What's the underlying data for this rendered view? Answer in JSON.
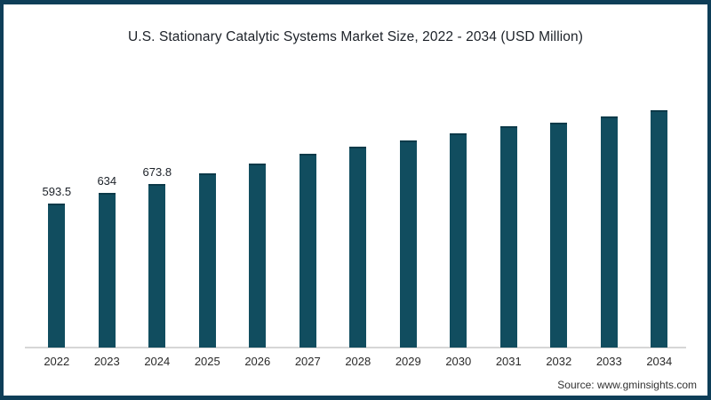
{
  "frame": {
    "border_color": "#0e3e58",
    "background": "#ffffff"
  },
  "chart_data": {
    "type": "bar",
    "title": "U.S. Stationary Catalytic Systems Market Size, 2022 - 2034 (USD Million)",
    "categories": [
      "2022",
      "2023",
      "2024",
      "2025",
      "2026",
      "2027",
      "2028",
      "2029",
      "2030",
      "2031",
      "2032",
      "2033",
      "2034"
    ],
    "values": [
      593.5,
      634,
      673.8,
      715,
      758,
      795,
      825,
      852,
      880,
      908,
      925,
      950,
      975
    ],
    "data_labels": [
      "593.5",
      "634",
      "673.8",
      "",
      "",
      "",
      "",
      "",
      "",
      "",
      "",
      "",
      ""
    ],
    "xlabel": "",
    "ylabel": "",
    "ylim": [
      0,
      1000
    ],
    "grid": false,
    "legend": false,
    "bar_color": "#114d5f",
    "bar_edge_color": "#0b3a49",
    "axis_line_color": "#d6d6d6",
    "label_color": "#1c2128"
  },
  "footer": {
    "source": "Source: www.gminsights.com"
  }
}
